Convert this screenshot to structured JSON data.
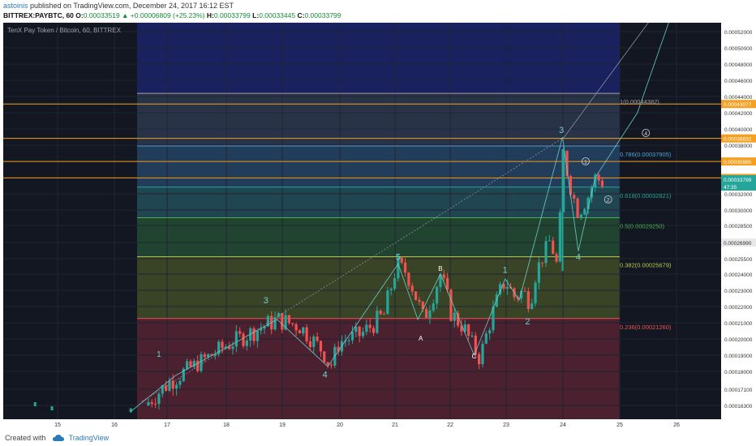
{
  "header": {
    "author": "astoinis",
    "published": " published on TradingView.com, December 24, 2017 16:12 EST",
    "symbol_line": "BITTREX:PAYBTC, 60",
    "open_label": "O:",
    "open": "0.00033519",
    "change": "▲ +0.00006809 (+25.23%)",
    "high_label": "H:",
    "high": "0.00033799",
    "low_label": "L:",
    "low": "0.00033445",
    "close_label": "C:",
    "close": "0.00033799"
  },
  "footer": {
    "created_with": "Created with",
    "brand": "TradingView"
  },
  "chart_data": {
    "type": "candlestick",
    "title": "TenX Pay Token / Bitcoin, 60, BITTREX",
    "x_ticks": [
      "15",
      "16",
      "17",
      "18",
      "19",
      "20",
      "21",
      "22",
      "23",
      "24",
      "25",
      "26"
    ],
    "y_ticks": [
      "0.00052000",
      "0.00050000",
      "0.00048000",
      "0.00046000",
      "0.00044000",
      "0.00042000",
      "0.00040000",
      "0.00038000",
      "0.00036000",
      "0.00034000",
      "0.00032000",
      "0.00030000",
      "0.00028500",
      "0.00027000",
      "0.00025500",
      "0.00024000",
      "0.00023000",
      "0.00022000",
      "0.00021000",
      "0.00020000",
      "0.00019000",
      "0.00018000",
      "0.00017100",
      "0.00016300"
    ],
    "price_tags": [
      {
        "label": "0.00043077",
        "color": "#f5a020"
      },
      {
        "label": "0.00038832",
        "color": "#f5a020"
      },
      {
        "label": "0.00035985",
        "color": "#f5a020"
      },
      {
        "label": "0.00033959",
        "color": "#f5a020"
      },
      {
        "label": "0.00033799",
        "color": "#26a69a"
      },
      {
        "label": "47:35",
        "color": "#26a69a"
      },
      {
        "label": "0.00026990",
        "color": "#e8e8e8"
      }
    ],
    "fib_levels": [
      {
        "label": "1(0.00044382)",
        "value": 0.00044382,
        "color": "#a0a0a0"
      },
      {
        "label": "0.786(0.00037905)",
        "value": 0.00037905,
        "color": "#4aa3df"
      },
      {
        "label": "0.618(0.00032821)",
        "value": 0.00032821,
        "color": "#26a69a"
      },
      {
        "label": "0.5(0.00029250)",
        "value": 0.0002925,
        "color": "#4caf50"
      },
      {
        "label": "0.382(0.00025679)",
        "value": 0.00025679,
        "color": "#b8c94a"
      },
      {
        "label": "0.236(0.00021260)",
        "value": 0.0002126,
        "color": "#ef5350"
      }
    ],
    "wave_labels": [
      "1",
      "3",
      "4",
      "5",
      "B",
      "A",
      "C",
      "1",
      "2",
      "3",
      "4",
      "1",
      "2",
      "4"
    ],
    "colors": {
      "up": "#26a69a",
      "down": "#ef5350",
      "background": "#131722"
    }
  }
}
